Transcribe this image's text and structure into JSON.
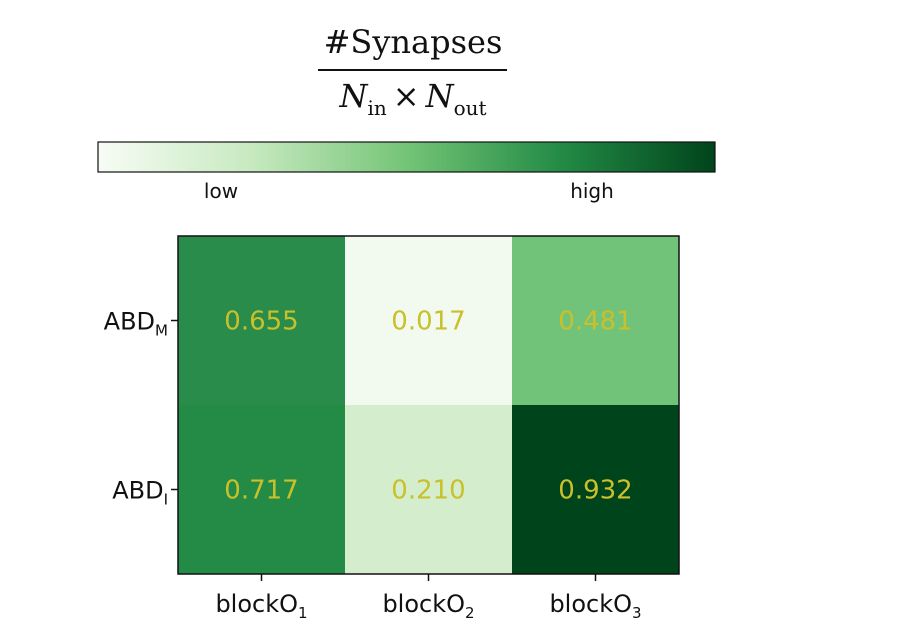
{
  "chart_data": {
    "type": "heatmap",
    "title": {
      "numerator": "#Synapses",
      "denominator": {
        "left_symbol": "N",
        "left_subscript": "in",
        "operator": "×",
        "right_symbol": "N",
        "right_subscript": "out"
      }
    },
    "colorbar": {
      "low_label": "low",
      "high_label": "high",
      "colors": [
        "#f7fcf5",
        "#c7e9c0",
        "#74c476",
        "#238b45",
        "#00441b"
      ]
    },
    "rows": [
      {
        "base": "ABD",
        "sub": "M"
      },
      {
        "base": "ABD",
        "sub": "I"
      }
    ],
    "columns": [
      {
        "base": "blockO",
        "sub": "1"
      },
      {
        "base": "blockO",
        "sub": "2"
      },
      {
        "base": "blockO",
        "sub": "3"
      }
    ],
    "values": [
      [
        0.655,
        0.017,
        0.481
      ],
      [
        0.717,
        0.21,
        0.932
      ]
    ],
    "cell_labels": [
      [
        "0.655",
        "0.017",
        "0.481"
      ],
      [
        "0.717",
        "0.210",
        "0.932"
      ]
    ],
    "cell_colors": [
      [
        "#2a8c4a",
        "#f2f9ef",
        "#72c37a"
      ],
      [
        "#238b45",
        "#d4edcd",
        "#00441b"
      ]
    ],
    "annotation_color": "#c9c02a"
  }
}
